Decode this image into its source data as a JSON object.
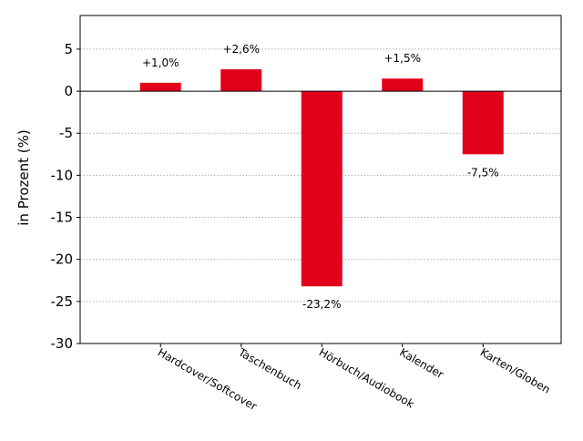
{
  "chart_data": {
    "type": "bar",
    "categories": [
      "Hardcover/Softcover",
      "Taschenbuch",
      "Hörbuch/Audiobook",
      "Kalender",
      "Karten/Globen"
    ],
    "values": [
      1.0,
      2.6,
      -23.2,
      1.5,
      -7.5
    ],
    "data_labels": [
      "+1,0%",
      "+2,6%",
      "-23,2%",
      "+1,5%",
      "-7,5%"
    ],
    "title": "",
    "xlabel": "",
    "ylabel": "in Prozent (%)",
    "ylim": [
      -30,
      9
    ],
    "y_ticks": [
      5,
      0,
      -5,
      -10,
      -15,
      -20,
      -25,
      -30
    ],
    "y_tick_labels": [
      "5",
      "0",
      "-5",
      "-10",
      "-15",
      "-20",
      "-25",
      "-30"
    ],
    "grid": "horizontal-dotted",
    "legend": "none",
    "bar_color": "#e2001a"
  }
}
